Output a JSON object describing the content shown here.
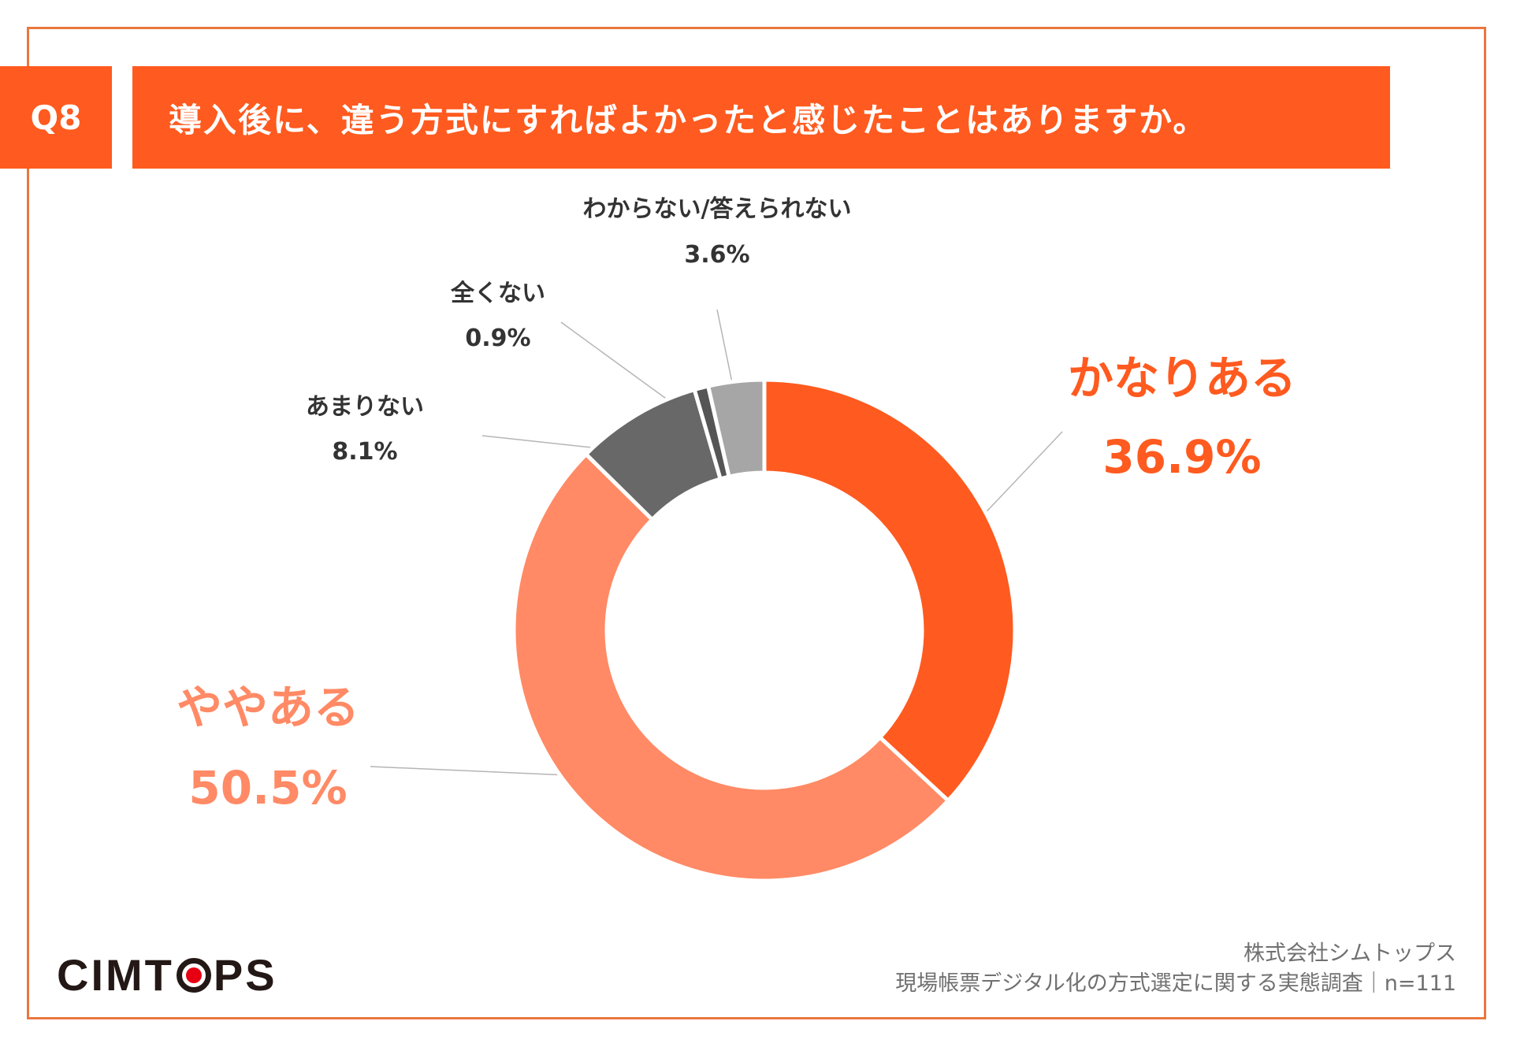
{
  "header": {
    "question_no": "Q8",
    "question": "導入後に、違う方式にすればよかったと感じたことはありますか。"
  },
  "chart_data": {
    "type": "pie",
    "donut": true,
    "slices": [
      {
        "label": "かなりある",
        "value": 36.9,
        "value_label": "36.9%",
        "color": "#ff5a1f"
      },
      {
        "label": "ややある",
        "value": 50.5,
        "value_label": "50.5%",
        "color": "#ff8a65"
      },
      {
        "label": "あまりない",
        "value": 8.1,
        "value_label": "8.1%",
        "color": "#686868"
      },
      {
        "label": "全くない",
        "value": 0.9,
        "value_label": "0.9%",
        "color": "#555555"
      },
      {
        "label": "わからない/答えられない",
        "value": 3.6,
        "value_label": "3.6%",
        "color": "#a6a6a6"
      }
    ]
  },
  "footer": {
    "company": "株式会社シムトップス",
    "survey": "現場帳票デジタル化の方式選定に関する実態調査｜n=111"
  },
  "logo": {
    "left": "CIMT",
    "right": "PS"
  }
}
